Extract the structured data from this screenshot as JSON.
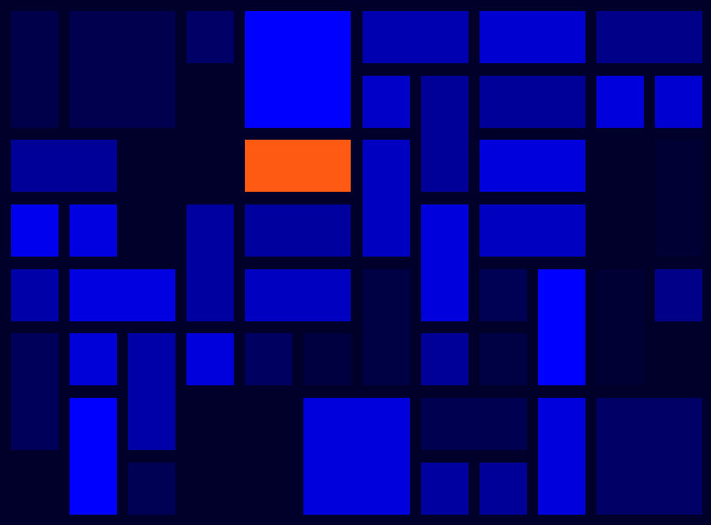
{
  "board": {
    "columns": 12,
    "rows": 8,
    "background": "#00002a",
    "blocks": [
      {
        "col": 0,
        "row": 0,
        "w": 1,
        "h": 2,
        "color": "#00004a"
      },
      {
        "col": 1,
        "row": 0,
        "w": 2,
        "h": 2,
        "color": "#00004f"
      },
      {
        "col": 3,
        "row": 0,
        "w": 1,
        "h": 1,
        "color": "#000066"
      },
      {
        "col": 4,
        "row": 0,
        "w": 2,
        "h": 2,
        "color": "#0000ff"
      },
      {
        "col": 6,
        "row": 0,
        "w": 2,
        "h": 1,
        "color": "#0000b0"
      },
      {
        "col": 8,
        "row": 0,
        "w": 2,
        "h": 1,
        "color": "#0000d0"
      },
      {
        "col": 10,
        "row": 0,
        "w": 2,
        "h": 1,
        "color": "#000088"
      },
      {
        "col": 6,
        "row": 1,
        "w": 1,
        "h": 1,
        "color": "#0000c8"
      },
      {
        "col": 7,
        "row": 1,
        "w": 1,
        "h": 2,
        "color": "#000099"
      },
      {
        "col": 8,
        "row": 1,
        "w": 2,
        "h": 1,
        "color": "#000099"
      },
      {
        "col": 10,
        "row": 1,
        "w": 1,
        "h": 1,
        "color": "#0000dd"
      },
      {
        "col": 11,
        "row": 1,
        "w": 1,
        "h": 1,
        "color": "#0000d0"
      },
      {
        "col": 0,
        "row": 2,
        "w": 2,
        "h": 1,
        "color": "#000099"
      },
      {
        "col": 4,
        "row": 2,
        "w": 2,
        "h": 1,
        "color": "#ff5a14",
        "target": true
      },
      {
        "col": 6,
        "row": 2,
        "w": 1,
        "h": 2,
        "color": "#0000c0"
      },
      {
        "col": 8,
        "row": 2,
        "w": 2,
        "h": 1,
        "color": "#0000dd"
      },
      {
        "col": 11,
        "row": 2,
        "w": 1,
        "h": 2,
        "color": "#000035"
      },
      {
        "col": 0,
        "row": 3,
        "w": 1,
        "h": 1,
        "color": "#0000ee"
      },
      {
        "col": 1,
        "row": 3,
        "w": 1,
        "h": 1,
        "color": "#0000e0"
      },
      {
        "col": 3,
        "row": 3,
        "w": 1,
        "h": 2,
        "color": "#0000a0"
      },
      {
        "col": 4,
        "row": 3,
        "w": 2,
        "h": 1,
        "color": "#00009f"
      },
      {
        "col": 7,
        "row": 3,
        "w": 1,
        "h": 2,
        "color": "#0000dd"
      },
      {
        "col": 8,
        "row": 3,
        "w": 2,
        "h": 1,
        "color": "#0000c0"
      },
      {
        "col": 0,
        "row": 4,
        "w": 1,
        "h": 1,
        "color": "#0000a8"
      },
      {
        "col": 1,
        "row": 4,
        "w": 2,
        "h": 1,
        "color": "#0000e0"
      },
      {
        "col": 4,
        "row": 4,
        "w": 2,
        "h": 1,
        "color": "#0000c0"
      },
      {
        "col": 6,
        "row": 4,
        "w": 1,
        "h": 2,
        "color": "#000045"
      },
      {
        "col": 8,
        "row": 4,
        "w": 1,
        "h": 1,
        "color": "#000055"
      },
      {
        "col": 9,
        "row": 4,
        "w": 1,
        "h": 2,
        "color": "#0000ff"
      },
      {
        "col": 10,
        "row": 4,
        "w": 1,
        "h": 2,
        "color": "#000035"
      },
      {
        "col": 11,
        "row": 4,
        "w": 1,
        "h": 1,
        "color": "#000088"
      },
      {
        "col": 0,
        "row": 5,
        "w": 1,
        "h": 2,
        "color": "#00005a"
      },
      {
        "col": 1,
        "row": 5,
        "w": 1,
        "h": 1,
        "color": "#0000d8"
      },
      {
        "col": 2,
        "row": 5,
        "w": 1,
        "h": 2,
        "color": "#0000a8"
      },
      {
        "col": 3,
        "row": 5,
        "w": 1,
        "h": 1,
        "color": "#0000dd"
      },
      {
        "col": 4,
        "row": 5,
        "w": 1,
        "h": 1,
        "color": "#000060"
      },
      {
        "col": 5,
        "row": 5,
        "w": 1,
        "h": 1,
        "color": "#000040"
      },
      {
        "col": 7,
        "row": 5,
        "w": 1,
        "h": 1,
        "color": "#000099"
      },
      {
        "col": 8,
        "row": 5,
        "w": 1,
        "h": 1,
        "color": "#000045"
      },
      {
        "col": 1,
        "row": 6,
        "w": 1,
        "h": 2,
        "color": "#0000ff"
      },
      {
        "col": 5,
        "row": 6,
        "w": 2,
        "h": 2,
        "color": "#0000dd"
      },
      {
        "col": 7,
        "row": 6,
        "w": 2,
        "h": 1,
        "color": "#000050"
      },
      {
        "col": 9,
        "row": 6,
        "w": 1,
        "h": 2,
        "color": "#0000dd"
      },
      {
        "col": 10,
        "row": 6,
        "w": 2,
        "h": 2,
        "color": "#000066"
      },
      {
        "col": 2,
        "row": 7,
        "w": 1,
        "h": 1,
        "color": "#000055"
      },
      {
        "col": 7,
        "row": 7,
        "w": 1,
        "h": 1,
        "color": "#0000a0"
      },
      {
        "col": 8,
        "row": 7,
        "w": 1,
        "h": 1,
        "color": "#000099"
      }
    ]
  }
}
